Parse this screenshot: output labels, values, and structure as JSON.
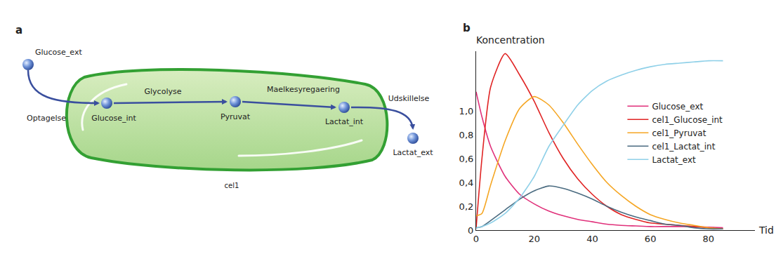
{
  "diagram": {
    "panel": "a",
    "compartment": "cel1",
    "nodes": [
      {
        "id": "Glucose_ext",
        "label": "Glucose_ext"
      },
      {
        "id": "Glucose_int",
        "label": "Glucose_int"
      },
      {
        "id": "Pyruvat",
        "label": "Pyruvat"
      },
      {
        "id": "Lactat_int",
        "label": "Lactat_int"
      },
      {
        "id": "Lactat_ext",
        "label": "Lactat_ext"
      }
    ],
    "edges": [
      {
        "from": "Glucose_ext",
        "to": "Glucose_int",
        "label": "Optagelse"
      },
      {
        "from": "Glucose_int",
        "to": "Pyruvat",
        "label": "Glycolyse"
      },
      {
        "from": "Pyruvat",
        "to": "Lactat_int",
        "label": "Maelkesyregaering"
      },
      {
        "from": "Lactat_int",
        "to": "Lactat_ext",
        "label": "Udskillelse"
      }
    ]
  },
  "chart_data": {
    "panel": "b",
    "type": "line",
    "x_label": "Tid",
    "y_label": "Koncentration",
    "x": [
      0,
      2,
      5,
      10,
      15,
      20,
      25,
      30,
      35,
      40,
      45,
      50,
      55,
      60,
      65,
      70,
      75,
      80,
      85
    ],
    "series": [
      {
        "name": "Glucose_ext",
        "color": "#e0307a",
        "values": [
          1.16,
          0.95,
          0.7,
          0.45,
          0.3,
          0.22,
          0.16,
          0.12,
          0.09,
          0.07,
          0.05,
          0.04,
          0.035,
          0.03,
          0.03,
          0.03,
          0.03,
          0.025,
          0.02
        ]
      },
      {
        "name": "cel1_Glucose_int",
        "color": "#e02424",
        "values": [
          0.02,
          0.6,
          1.2,
          1.48,
          1.3,
          1.08,
          0.82,
          0.6,
          0.43,
          0.3,
          0.2,
          0.13,
          0.09,
          0.06,
          0.05,
          0.04,
          0.03,
          0.02,
          0.01
        ]
      },
      {
        "name": "cel1_Pyruvat",
        "color": "#f5a623",
        "values": [
          0.12,
          0.14,
          0.38,
          0.75,
          1.02,
          1.12,
          1.05,
          0.9,
          0.72,
          0.55,
          0.4,
          0.29,
          0.2,
          0.13,
          0.09,
          0.06,
          0.04,
          0.02,
          0.01
        ]
      },
      {
        "name": "cel1_Lactat_int",
        "color": "#4a6b80",
        "values": [
          0.02,
          0.03,
          0.08,
          0.17,
          0.26,
          0.33,
          0.37,
          0.35,
          0.31,
          0.26,
          0.2,
          0.15,
          0.11,
          0.08,
          0.05,
          0.04,
          0.02,
          0.01,
          0.01
        ]
      },
      {
        "name": "Lactat_ext",
        "color": "#8fd0e8",
        "values": [
          0.02,
          0.03,
          0.06,
          0.14,
          0.27,
          0.45,
          0.7,
          0.88,
          1.05,
          1.17,
          1.25,
          1.3,
          1.34,
          1.37,
          1.39,
          1.4,
          1.41,
          1.42,
          1.42
        ]
      }
    ],
    "xlim": [
      0,
      96
    ],
    "ylim": [
      0,
      1.5
    ],
    "xticks": [
      0,
      20,
      40,
      60,
      80
    ],
    "yticks": [
      0,
      {
        "value": 0.2,
        "label": "0,2"
      },
      {
        "value": 0.4,
        "label": "0,4"
      },
      {
        "value": 0.6,
        "label": "0,6"
      },
      {
        "value": 0.8,
        "label": "0,8"
      },
      {
        "value": 1.0,
        "label": "1,0"
      }
    ],
    "grid": false,
    "legend": "right"
  }
}
